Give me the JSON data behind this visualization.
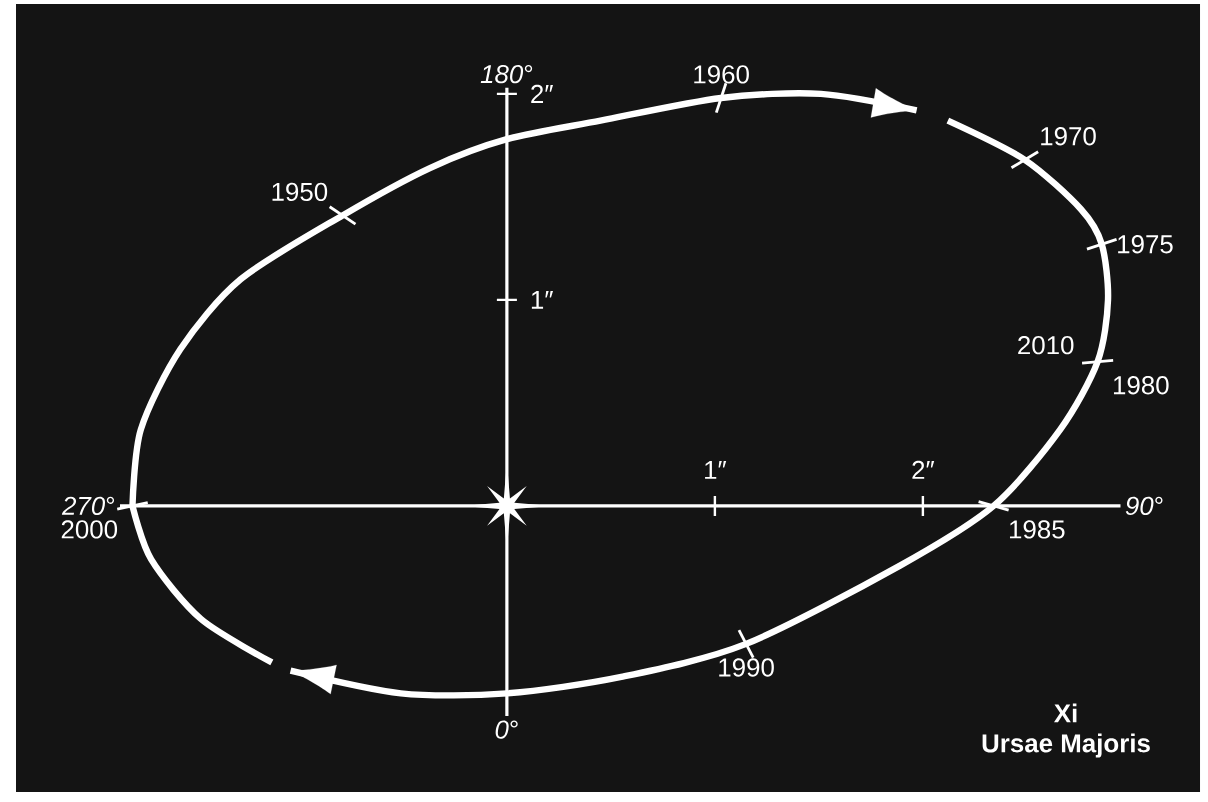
{
  "chart_data": {
    "type": "line",
    "title": "Xi",
    "subtitle": "Ursae Majoris",
    "color": "#ffffff",
    "x": [
      -1.8,
      -1.76,
      -1.57,
      -1.28,
      -0.79,
      -0.37,
      0,
      0.45,
      1.03,
      1.51,
      1.97,
      null,
      2.12,
      2.49,
      2.76,
      2.86,
      2.89,
      2.84,
      2.66,
      2.34,
      1.89,
      1.15,
      0.55,
      0,
      -0.51,
      -1.04,
      null,
      -1.13,
      -1.47,
      -1.71,
      -1.8
    ],
    "values": [
      0,
      0.37,
      0.76,
      1.1,
      1.41,
      1.64,
      1.78,
      1.87,
      1.98,
      2.0,
      1.92,
      null,
      1.87,
      1.68,
      1.44,
      1.27,
      1.0,
      0.7,
      0.37,
      0,
      -0.29,
      -0.67,
      -0.83,
      -0.91,
      -0.91,
      -0.8,
      null,
      -0.76,
      -0.55,
      -0.26,
      0
    ],
    "xlim": [
      -1.86,
      2.95
    ],
    "ylim": [
      -1.02,
      2.03
    ],
    "xticks": [
      {
        "value": 1,
        "label": "1″"
      },
      {
        "value": 2,
        "label": "2″"
      }
    ],
    "yticks": [
      {
        "value": 1,
        "label": "1″"
      },
      {
        "value": 2,
        "label": "2″"
      }
    ],
    "annotations": [
      {
        "text": "1950",
        "x": -0.79,
        "y": 1.41
      },
      {
        "text": "1960",
        "x": 1.03,
        "y": 1.98
      },
      {
        "text": "1970",
        "x": 2.49,
        "y": 1.68
      },
      {
        "text": "1975",
        "x": 2.86,
        "y": 1.27
      },
      {
        "text": "1980",
        "x": 2.84,
        "y": 0.7
      },
      {
        "text": "1985",
        "x": 2.34,
        "y": 0
      },
      {
        "text": "1990",
        "x": 1.15,
        "y": -0.67
      },
      {
        "text": "2000",
        "x": -1.8,
        "y": 0
      },
      "2010",
      "*270*°",
      "*90*°",
      "*180*°",
      "*0*°"
    ]
  }
}
